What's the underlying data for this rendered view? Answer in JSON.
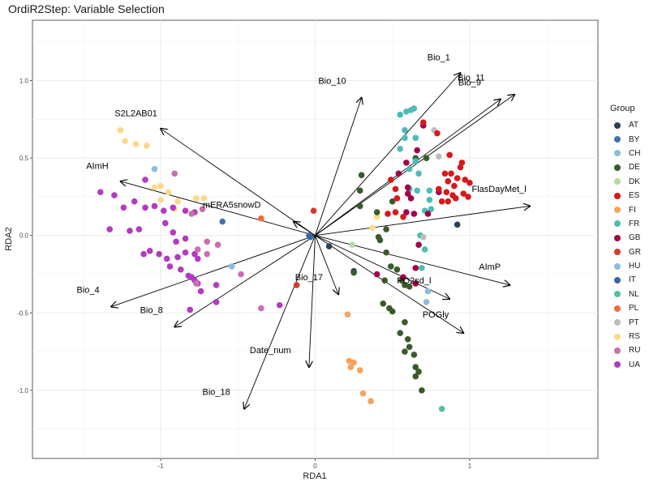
{
  "title": "OrdiR2Step: Variable Selection",
  "chart_data": {
    "type": "scatter",
    "title": "OrdiR2Step: Variable Selection",
    "xlabel": "RDA1",
    "ylabel": "RDA2",
    "xlim": [
      -1.83,
      1.83
    ],
    "ylim": [
      -1.44,
      1.39
    ],
    "x_ticks": [
      -1,
      0,
      1
    ],
    "y_ticks": [
      -1.0,
      -0.5,
      0.0,
      0.5,
      1.0
    ],
    "x_tick_labels": [
      "-1",
      "0",
      "1"
    ],
    "y_tick_labels": [
      "-1.0",
      "-0.5",
      "0.0",
      "0.5",
      "1.0"
    ],
    "grid": true,
    "legend_position": "right",
    "legend_title": "Group",
    "groups": [
      {
        "name": "AT",
        "color": "#2b3f5c"
      },
      {
        "name": "BY",
        "color": "#4472a8"
      },
      {
        "name": "CH",
        "color": "#8fbcdb"
      },
      {
        "name": "DE",
        "color": "#3a5a2a"
      },
      {
        "name": "DK",
        "color": "#b2dba0"
      },
      {
        "name": "ES",
        "color": "#d7191c"
      },
      {
        "name": "FI",
        "color": "#f6a35c"
      },
      {
        "name": "FR",
        "color": "#4dbcb6"
      },
      {
        "name": "GB",
        "color": "#a3004b"
      },
      {
        "name": "GR",
        "color": "#d43a2a"
      },
      {
        "name": "HU",
        "color": "#8fbcdb"
      },
      {
        "name": "IT",
        "color": "#3567a8"
      },
      {
        "name": "NL",
        "color": "#57c29a"
      },
      {
        "name": "PL",
        "color": "#f06b3a"
      },
      {
        "name": "PT",
        "color": "#bdbdbd"
      },
      {
        "name": "RS",
        "color": "#fcd98a"
      },
      {
        "name": "RU",
        "color": "#c86fb0"
      },
      {
        "name": "UA",
        "color": "#b23bbf"
      }
    ],
    "arrows": [
      {
        "name": "Bio_1",
        "x": 0.94,
        "y": 1.05,
        "label_x": 0.8,
        "label_y": 1.13
      },
      {
        "name": "Bio_11",
        "x": 1.29,
        "y": 0.91,
        "label_x": 1.01,
        "label_y": 1.0
      },
      {
        "name": "Bio_9",
        "x": 1.2,
        "y": 0.88,
        "label_x": 1.0,
        "label_y": 0.97
      },
      {
        "name": "Bio_10",
        "x": 0.3,
        "y": 0.89,
        "label_x": 0.11,
        "label_y": 0.98
      },
      {
        "name": "S2L2AB01",
        "x": -1.0,
        "y": 0.69,
        "label_x": -1.16,
        "label_y": 0.77
      },
      {
        "name": "AImH",
        "x": -1.26,
        "y": 0.35,
        "label_x": -1.41,
        "label_y": 0.43
      },
      {
        "name": "mERA5snowD",
        "x": -0.14,
        "y": 0.09,
        "label_x": -0.54,
        "label_y": 0.18
      },
      {
        "name": "FlasDayMet_l",
        "x": 1.39,
        "y": 0.19,
        "label_x": 1.19,
        "label_y": 0.28
      },
      {
        "name": "AImP",
        "x": 1.26,
        "y": -0.32,
        "label_x": 1.13,
        "label_y": -0.22
      },
      {
        "name": "PO2sd_l",
        "x": 0.87,
        "y": -0.41,
        "label_x": 0.64,
        "label_y": -0.31
      },
      {
        "name": "POGly",
        "x": 0.96,
        "y": -0.63,
        "label_x": 0.78,
        "label_y": -0.53
      },
      {
        "name": "Bio_17",
        "x": 0.15,
        "y": -0.38,
        "label_x": -0.04,
        "label_y": -0.29
      },
      {
        "name": "Bio_4",
        "x": -1.32,
        "y": -0.46,
        "label_x": -1.47,
        "label_y": -0.37
      },
      {
        "name": "Bio_8",
        "x": -0.91,
        "y": -0.59,
        "label_x": -1.06,
        "label_y": -0.5
      },
      {
        "name": "Date_num",
        "x": -0.04,
        "y": -0.85,
        "label_x": -0.29,
        "label_y": -0.76
      },
      {
        "name": "Bio_18",
        "x": -0.46,
        "y": -1.12,
        "label_x": -0.64,
        "label_y": -1.03
      }
    ],
    "points": [
      {
        "g": "RS",
        "x": -1.26,
        "y": 0.68
      },
      {
        "g": "RS",
        "x": -1.23,
        "y": 0.61
      },
      {
        "g": "RS",
        "x": -1.16,
        "y": 0.59
      },
      {
        "g": "RS",
        "x": -1.09,
        "y": 0.58
      },
      {
        "g": "RS",
        "x": -1.04,
        "y": 0.31
      },
      {
        "g": "RS",
        "x": -1.0,
        "y": 0.32
      },
      {
        "g": "RS",
        "x": -1.0,
        "y": 0.23
      },
      {
        "g": "RS",
        "x": -0.95,
        "y": 0.28
      },
      {
        "g": "RS",
        "x": -0.89,
        "y": 0.22
      },
      {
        "g": "RS",
        "x": -0.91,
        "y": 0.17
      },
      {
        "g": "RS",
        "x": -0.77,
        "y": 0.24
      },
      {
        "g": "RS",
        "x": -0.72,
        "y": 0.24
      },
      {
        "g": "RS",
        "x": -0.63,
        "y": -0.06
      },
      {
        "g": "RS",
        "x": 0.4,
        "y": 0.12
      },
      {
        "g": "RS",
        "x": 0.37,
        "y": 0.05
      },
      {
        "g": "UA",
        "x": -1.39,
        "y": 0.28
      },
      {
        "g": "UA",
        "x": -1.3,
        "y": 0.26
      },
      {
        "g": "UA",
        "x": -1.24,
        "y": 0.18
      },
      {
        "g": "UA",
        "x": -1.17,
        "y": 0.22
      },
      {
        "g": "UA",
        "x": -1.1,
        "y": 0.18
      },
      {
        "g": "UA",
        "x": -1.04,
        "y": 0.19
      },
      {
        "g": "UA",
        "x": -0.98,
        "y": 0.16
      },
      {
        "g": "UA",
        "x": -0.92,
        "y": 0.18
      },
      {
        "g": "UA",
        "x": -0.84,
        "y": 0.16
      },
      {
        "g": "UA",
        "x": -0.78,
        "y": 0.15
      },
      {
        "g": "UA",
        "x": -1.33,
        "y": 0.04
      },
      {
        "g": "UA",
        "x": -1.2,
        "y": 0.03
      },
      {
        "g": "UA",
        "x": -1.14,
        "y": 0.04
      },
      {
        "g": "UA",
        "x": -0.97,
        "y": 0.08
      },
      {
        "g": "UA",
        "x": -0.92,
        "y": 0.02
      },
      {
        "g": "UA",
        "x": -0.9,
        "y": -0.04
      },
      {
        "g": "UA",
        "x": -0.84,
        "y": -0.02
      },
      {
        "g": "UA",
        "x": -1.07,
        "y": -0.1
      },
      {
        "g": "UA",
        "x": -1.01,
        "y": -0.12
      },
      {
        "g": "UA",
        "x": -0.96,
        "y": -0.15
      },
      {
        "g": "UA",
        "x": -0.89,
        "y": -0.14
      },
      {
        "g": "UA",
        "x": -0.84,
        "y": -0.11
      },
      {
        "g": "UA",
        "x": -0.78,
        "y": -0.12
      },
      {
        "g": "UA",
        "x": -0.76,
        "y": -0.15
      },
      {
        "g": "UA",
        "x": -1.11,
        "y": -0.12
      },
      {
        "g": "UA",
        "x": -0.94,
        "y": -0.2
      },
      {
        "g": "UA",
        "x": -0.87,
        "y": -0.22
      },
      {
        "g": "UA",
        "x": -0.82,
        "y": -0.26
      },
      {
        "g": "UA",
        "x": -0.8,
        "y": -0.27
      },
      {
        "g": "UA",
        "x": -0.78,
        "y": -0.29
      },
      {
        "g": "UA",
        "x": -0.76,
        "y": -0.31
      },
      {
        "g": "UA",
        "x": -0.64,
        "y": -0.32
      },
      {
        "g": "UA",
        "x": -0.74,
        "y": -0.36
      },
      {
        "g": "UA",
        "x": -0.64,
        "y": -0.43
      },
      {
        "g": "UA",
        "x": -0.81,
        "y": -0.48
      },
      {
        "g": "UA",
        "x": -0.23,
        "y": -0.45
      },
      {
        "g": "UA",
        "x": -1.1,
        "y": 0.36
      },
      {
        "g": "RU",
        "x": -0.91,
        "y": 0.4
      },
      {
        "g": "RU",
        "x": -0.8,
        "y": 0.14
      },
      {
        "g": "RU",
        "x": -0.73,
        "y": 0.17
      },
      {
        "g": "RU",
        "x": -0.7,
        "y": -0.04
      },
      {
        "g": "RU",
        "x": -0.63,
        "y": -0.06
      },
      {
        "g": "RU",
        "x": -0.76,
        "y": -0.09
      },
      {
        "g": "RU",
        "x": -0.7,
        "y": -0.12
      },
      {
        "g": "RU",
        "x": -0.48,
        "y": -0.25
      },
      {
        "g": "RU",
        "x": -0.35,
        "y": -0.47
      },
      {
        "g": "RU",
        "x": -0.77,
        "y": -0.31
      },
      {
        "g": "CH",
        "x": -1.04,
        "y": 0.43
      },
      {
        "g": "CH",
        "x": -0.54,
        "y": -0.2
      },
      {
        "g": "CH",
        "x": 0.73,
        "y": -0.36
      },
      {
        "g": "CH",
        "x": 0.72,
        "y": -0.43
      },
      {
        "g": "BY",
        "x": -0.6,
        "y": 0.09
      },
      {
        "g": "BY",
        "x": -0.04,
        "y": 0.0
      },
      {
        "g": "PL",
        "x": -0.35,
        "y": 0.11
      },
      {
        "g": "GR",
        "x": -0.01,
        "y": 0.16
      },
      {
        "g": "GR",
        "x": -0.12,
        "y": -0.32
      },
      {
        "g": "IT",
        "x": -0.03,
        "y": -0.01
      },
      {
        "g": "AT",
        "x": 0.09,
        "y": -0.07
      },
      {
        "g": "AT",
        "x": 0.92,
        "y": 0.07
      },
      {
        "g": "AT",
        "x": 0.25,
        "y": -0.23
      },
      {
        "g": "FI",
        "x": 0.21,
        "y": -0.51
      },
      {
        "g": "FI",
        "x": 0.22,
        "y": -0.81
      },
      {
        "g": "FI",
        "x": 0.25,
        "y": -0.82
      },
      {
        "g": "FI",
        "x": 0.23,
        "y": -0.85
      },
      {
        "g": "FI",
        "x": 0.29,
        "y": -0.87
      },
      {
        "g": "FI",
        "x": 0.31,
        "y": -1.02
      },
      {
        "g": "FI",
        "x": 0.36,
        "y": -1.07
      },
      {
        "g": "DE",
        "x": 0.29,
        "y": 0.29
      },
      {
        "g": "DE",
        "x": 0.29,
        "y": 0.19
      },
      {
        "g": "DE",
        "x": 0.5,
        "y": 0.22
      },
      {
        "g": "DE",
        "x": 0.4,
        "y": 0.15
      },
      {
        "g": "DE",
        "x": 0.46,
        "y": 0.04
      },
      {
        "g": "DE",
        "x": 0.41,
        "y": -0.01
      },
      {
        "g": "DE",
        "x": 0.42,
        "y": -0.03
      },
      {
        "g": "DE",
        "x": 0.46,
        "y": -0.11
      },
      {
        "g": "DE",
        "x": 0.49,
        "y": -0.2
      },
      {
        "g": "DE",
        "x": 0.53,
        "y": -0.22
      },
      {
        "g": "DE",
        "x": 0.56,
        "y": -0.29
      },
      {
        "g": "DE",
        "x": 0.58,
        "y": -0.32
      },
      {
        "g": "DE",
        "x": 0.61,
        "y": -0.33
      },
      {
        "g": "DE",
        "x": 0.45,
        "y": -0.29
      },
      {
        "g": "DE",
        "x": 0.44,
        "y": -0.44
      },
      {
        "g": "DE",
        "x": 0.48,
        "y": -0.47
      },
      {
        "g": "DE",
        "x": 0.5,
        "y": -0.49
      },
      {
        "g": "DE",
        "x": 0.58,
        "y": -0.56
      },
      {
        "g": "DE",
        "x": 0.55,
        "y": -0.63
      },
      {
        "g": "DE",
        "x": 0.6,
        "y": -0.67
      },
      {
        "g": "DE",
        "x": 0.61,
        "y": -0.72
      },
      {
        "g": "DE",
        "x": 0.58,
        "y": -0.75
      },
      {
        "g": "DE",
        "x": 0.64,
        "y": -0.77
      },
      {
        "g": "DE",
        "x": 0.65,
        "y": -0.85
      },
      {
        "g": "DE",
        "x": 0.67,
        "y": -0.88
      },
      {
        "g": "DE",
        "x": 0.65,
        "y": -0.91
      },
      {
        "g": "DE",
        "x": 0.69,
        "y": -1.0
      },
      {
        "g": "DE",
        "x": 0.3,
        "y": 0.39
      },
      {
        "g": "DE",
        "x": 0.72,
        "y": 0.5
      },
      {
        "g": "DE",
        "x": 0.65,
        "y": 0.5
      },
      {
        "g": "DE",
        "x": 0.25,
        "y": -0.24
      },
      {
        "g": "DK",
        "x": 0.24,
        "y": -0.06
      },
      {
        "g": "FR",
        "x": 0.55,
        "y": 0.78
      },
      {
        "g": "FR",
        "x": 0.59,
        "y": 0.8
      },
      {
        "g": "FR",
        "x": 0.62,
        "y": 0.81
      },
      {
        "g": "FR",
        "x": 0.64,
        "y": 0.82
      },
      {
        "g": "FR",
        "x": 0.58,
        "y": 0.68
      },
      {
        "g": "FR",
        "x": 0.58,
        "y": 0.63
      },
      {
        "g": "FR",
        "x": 0.65,
        "y": 0.63
      },
      {
        "g": "FR",
        "x": 0.55,
        "y": 0.56
      },
      {
        "g": "FR",
        "x": 0.65,
        "y": 0.48
      },
      {
        "g": "FR",
        "x": 0.61,
        "y": 0.43
      },
      {
        "g": "FR",
        "x": 0.67,
        "y": 0.4
      },
      {
        "g": "FR",
        "x": 0.61,
        "y": 0.3
      },
      {
        "g": "FR",
        "x": 0.66,
        "y": 0.29
      },
      {
        "g": "FR",
        "x": 0.74,
        "y": 0.23
      },
      {
        "g": "FR",
        "x": 0.75,
        "y": 0.17
      },
      {
        "g": "FR",
        "x": 0.71,
        "y": 0.16
      },
      {
        "g": "FR",
        "x": 0.68,
        "y": 0.0
      },
      {
        "g": "FR",
        "x": 0.71,
        "y": -0.09
      },
      {
        "g": "FR",
        "x": 0.69,
        "y": -0.21
      },
      {
        "g": "FR",
        "x": 0.74,
        "y": 0.29
      },
      {
        "g": "NL",
        "x": 0.82,
        "y": -1.12
      },
      {
        "g": "PT",
        "x": 0.77,
        "y": 0.68
      },
      {
        "g": "PT",
        "x": 0.8,
        "y": 0.51
      },
      {
        "g": "PT",
        "x": 0.7,
        "y": -0.01
      },
      {
        "g": "GB",
        "x": 0.7,
        "y": 0.71
      },
      {
        "g": "GB",
        "x": 0.66,
        "y": 0.55
      },
      {
        "g": "GB",
        "x": 0.59,
        "y": 0.47
      },
      {
        "g": "GB",
        "x": 0.54,
        "y": 0.4
      },
      {
        "g": "GB",
        "x": 0.6,
        "y": 0.31
      },
      {
        "g": "GB",
        "x": 0.6,
        "y": 0.27
      },
      {
        "g": "GB",
        "x": 0.62,
        "y": 0.24
      },
      {
        "g": "GB",
        "x": 0.59,
        "y": 0.15
      },
      {
        "g": "GB",
        "x": 0.64,
        "y": 0.14
      },
      {
        "g": "GB",
        "x": 0.73,
        "y": 0.14
      },
      {
        "g": "GB",
        "x": 0.8,
        "y": 0.28
      },
      {
        "g": "GB",
        "x": 0.67,
        "y": -0.06
      },
      {
        "g": "GB",
        "x": 0.4,
        "y": -0.25
      },
      {
        "g": "GB",
        "x": 0.57,
        "y": -0.27
      },
      {
        "g": "GB",
        "x": 0.65,
        "y": -0.21
      },
      {
        "g": "GB",
        "x": 0.65,
        "y": -0.31
      },
      {
        "g": "ES",
        "x": 0.7,
        "y": 0.73
      },
      {
        "g": "ES",
        "x": 0.79,
        "y": 0.66
      },
      {
        "g": "ES",
        "x": 0.87,
        "y": 0.52
      },
      {
        "g": "ES",
        "x": 0.84,
        "y": 0.4
      },
      {
        "g": "ES",
        "x": 0.88,
        "y": 0.4
      },
      {
        "g": "ES",
        "x": 0.86,
        "y": 0.35
      },
      {
        "g": "ES",
        "x": 0.92,
        "y": 0.37
      },
      {
        "g": "ES",
        "x": 0.94,
        "y": 0.44
      },
      {
        "g": "ES",
        "x": 0.95,
        "y": 0.47
      },
      {
        "g": "ES",
        "x": 0.97,
        "y": 0.36
      },
      {
        "g": "ES",
        "x": 1.0,
        "y": 0.34
      },
      {
        "g": "ES",
        "x": 0.9,
        "y": 0.32
      },
      {
        "g": "ES",
        "x": 0.85,
        "y": 0.28
      },
      {
        "g": "ES",
        "x": 0.8,
        "y": 0.3
      },
      {
        "g": "ES",
        "x": 0.89,
        "y": 0.26
      },
      {
        "g": "ES",
        "x": 0.91,
        "y": 0.24
      },
      {
        "g": "ES",
        "x": 0.96,
        "y": 0.27
      },
      {
        "g": "ES",
        "x": 0.99,
        "y": 0.25
      },
      {
        "g": "ES",
        "x": 0.86,
        "y": 0.22
      },
      {
        "g": "ES",
        "x": 0.82,
        "y": 0.22
      },
      {
        "g": "ES",
        "x": 0.52,
        "y": 0.15
      },
      {
        "g": "ES",
        "x": 0.53,
        "y": 0.24
      },
      {
        "g": "ES",
        "x": 0.47,
        "y": 0.14
      },
      {
        "g": "ES",
        "x": 0.57,
        "y": 0.12
      },
      {
        "g": "ES",
        "x": 0.52,
        "y": 0.3
      },
      {
        "g": "ES",
        "x": 0.49,
        "y": 0.36
      }
    ]
  }
}
